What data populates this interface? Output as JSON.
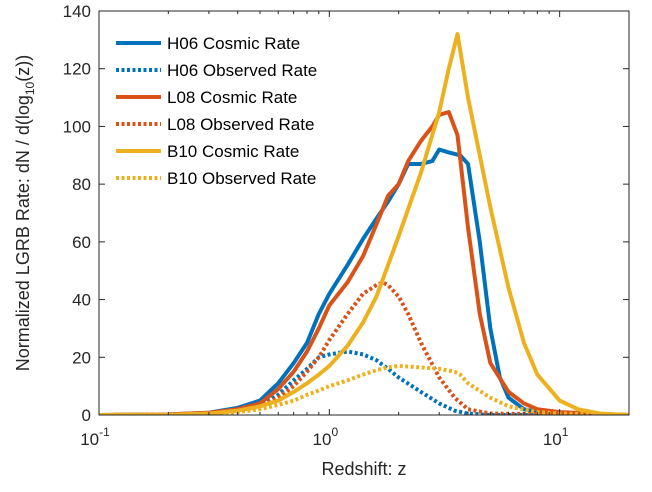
{
  "chart_data": {
    "type": "line",
    "xlabel": "Redshift: z",
    "ylabel_main": "Normalized LGRB Rate: dN / d(log",
    "ylabel_sub": "10",
    "ylabel_tail": "(z))",
    "x_scale": "log",
    "xlim": [
      0.1,
      20
    ],
    "ylim": [
      0,
      140
    ],
    "x_ticks": [
      {
        "value": 0.1,
        "base": "10",
        "exp": "-1"
      },
      {
        "value": 1,
        "base": "10",
        "exp": "0"
      },
      {
        "value": 10,
        "base": "10",
        "exp": "1"
      }
    ],
    "y_ticks": [
      0,
      20,
      40,
      60,
      80,
      100,
      120,
      140
    ],
    "y_tick_labels": [
      "0",
      "20",
      "40",
      "60",
      "80",
      "100",
      "120",
      "140"
    ],
    "grid": false,
    "legend_position": "top-left",
    "series": [
      {
        "name": "H06 Cosmic Rate",
        "color": "#0072BD",
        "style": "solid",
        "points": [
          [
            0.1,
            0
          ],
          [
            0.2,
            0.2
          ],
          [
            0.3,
            0.8
          ],
          [
            0.4,
            2.5
          ],
          [
            0.5,
            5
          ],
          [
            0.6,
            11
          ],
          [
            0.7,
            18
          ],
          [
            0.8,
            25
          ],
          [
            0.9,
            35
          ],
          [
            1.0,
            42
          ],
          [
            1.2,
            52
          ],
          [
            1.4,
            61
          ],
          [
            1.6,
            68
          ],
          [
            1.8,
            74
          ],
          [
            2.0,
            80
          ],
          [
            2.2,
            87
          ],
          [
            2.5,
            87
          ],
          [
            2.8,
            88
          ],
          [
            3.0,
            92
          ],
          [
            3.3,
            91
          ],
          [
            3.7,
            90
          ],
          [
            4.0,
            87
          ],
          [
            4.5,
            60
          ],
          [
            5.0,
            30
          ],
          [
            5.5,
            13
          ],
          [
            6.0,
            6
          ],
          [
            7.0,
            2
          ],
          [
            8.0,
            1
          ],
          [
            10.0,
            0.5
          ],
          [
            20.0,
            0
          ]
        ]
      },
      {
        "name": "H06 Observed Rate",
        "color": "#0072BD",
        "style": "dotted",
        "points": [
          [
            0.1,
            0
          ],
          [
            0.2,
            0.1
          ],
          [
            0.3,
            0.5
          ],
          [
            0.4,
            1.5
          ],
          [
            0.5,
            3
          ],
          [
            0.6,
            7
          ],
          [
            0.7,
            12
          ],
          [
            0.8,
            16
          ],
          [
            0.9,
            20
          ],
          [
            1.0,
            21
          ],
          [
            1.2,
            22
          ],
          [
            1.4,
            21
          ],
          [
            1.6,
            19
          ],
          [
            1.8,
            16
          ],
          [
            2.0,
            13
          ],
          [
            2.5,
            8
          ],
          [
            3.0,
            4
          ],
          [
            3.5,
            1.5
          ],
          [
            4.0,
            0.5
          ],
          [
            5.0,
            0
          ],
          [
            20.0,
            0
          ]
        ]
      },
      {
        "name": "L08 Cosmic Rate",
        "color": "#D95319",
        "style": "solid",
        "points": [
          [
            0.1,
            0
          ],
          [
            0.2,
            0.2
          ],
          [
            0.3,
            0.8
          ],
          [
            0.4,
            2
          ],
          [
            0.5,
            4
          ],
          [
            0.6,
            9
          ],
          [
            0.7,
            15
          ],
          [
            0.8,
            22
          ],
          [
            0.9,
            30
          ],
          [
            1.0,
            38
          ],
          [
            1.2,
            46
          ],
          [
            1.4,
            55
          ],
          [
            1.6,
            66
          ],
          [
            1.8,
            76
          ],
          [
            2.0,
            80
          ],
          [
            2.2,
            88
          ],
          [
            2.5,
            95
          ],
          [
            2.8,
            100
          ],
          [
            3.0,
            104
          ],
          [
            3.3,
            105
          ],
          [
            3.6,
            97
          ],
          [
            4.0,
            65
          ],
          [
            4.5,
            35
          ],
          [
            5.0,
            18
          ],
          [
            6.0,
            8
          ],
          [
            7.0,
            4
          ],
          [
            8.0,
            2
          ],
          [
            10.0,
            1
          ],
          [
            20.0,
            0
          ]
        ]
      },
      {
        "name": "L08 Observed Rate",
        "color": "#D95319",
        "style": "dotted",
        "points": [
          [
            0.1,
            0
          ],
          [
            0.2,
            0.1
          ],
          [
            0.3,
            0.5
          ],
          [
            0.4,
            1.5
          ],
          [
            0.5,
            3
          ],
          [
            0.6,
            6
          ],
          [
            0.7,
            10
          ],
          [
            0.8,
            15
          ],
          [
            0.9,
            20
          ],
          [
            1.0,
            26
          ],
          [
            1.2,
            35
          ],
          [
            1.4,
            42
          ],
          [
            1.6,
            45
          ],
          [
            1.7,
            46
          ],
          [
            1.8,
            45
          ],
          [
            2.0,
            41
          ],
          [
            2.2,
            35
          ],
          [
            2.5,
            25
          ],
          [
            3.0,
            13
          ],
          [
            3.5,
            6
          ],
          [
            4.0,
            2
          ],
          [
            5.0,
            0.5
          ],
          [
            20.0,
            0
          ]
        ]
      },
      {
        "name": "B10 Cosmic Rate",
        "color": "#EDB120",
        "style": "solid",
        "points": [
          [
            0.1,
            0
          ],
          [
            0.2,
            0.1
          ],
          [
            0.3,
            0.5
          ],
          [
            0.4,
            1.5
          ],
          [
            0.5,
            3
          ],
          [
            0.6,
            5
          ],
          [
            0.7,
            8
          ],
          [
            0.8,
            11
          ],
          [
            0.9,
            14
          ],
          [
            1.0,
            17
          ],
          [
            1.2,
            24
          ],
          [
            1.4,
            32
          ],
          [
            1.6,
            41
          ],
          [
            1.8,
            52
          ],
          [
            2.0,
            62
          ],
          [
            2.5,
            84
          ],
          [
            3.0,
            105
          ],
          [
            3.3,
            120
          ],
          [
            3.6,
            132
          ],
          [
            4.0,
            110
          ],
          [
            5.0,
            72
          ],
          [
            6.0,
            44
          ],
          [
            7.0,
            25
          ],
          [
            8.0,
            14
          ],
          [
            10.0,
            5
          ],
          [
            12.0,
            2
          ],
          [
            15.0,
            0.5
          ],
          [
            20.0,
            0
          ]
        ]
      },
      {
        "name": "B10 Observed Rate",
        "color": "#EDB120",
        "style": "dotted",
        "points": [
          [
            0.1,
            0
          ],
          [
            0.2,
            0.1
          ],
          [
            0.3,
            0.3
          ],
          [
            0.4,
            1
          ],
          [
            0.5,
            2
          ],
          [
            0.6,
            3.5
          ],
          [
            0.7,
            5
          ],
          [
            0.8,
            7
          ],
          [
            0.9,
            8.5
          ],
          [
            1.0,
            10
          ],
          [
            1.2,
            12
          ],
          [
            1.4,
            14
          ],
          [
            1.6,
            15.5
          ],
          [
            1.8,
            16.5
          ],
          [
            2.0,
            17
          ],
          [
            2.5,
            16.5
          ],
          [
            3.0,
            16
          ],
          [
            3.5,
            15
          ],
          [
            3.7,
            14
          ],
          [
            4.0,
            11
          ],
          [
            5.0,
            6
          ],
          [
            6.0,
            3
          ],
          [
            8.0,
            1
          ],
          [
            10.0,
            0.5
          ],
          [
            20.0,
            0
          ]
        ]
      }
    ]
  }
}
